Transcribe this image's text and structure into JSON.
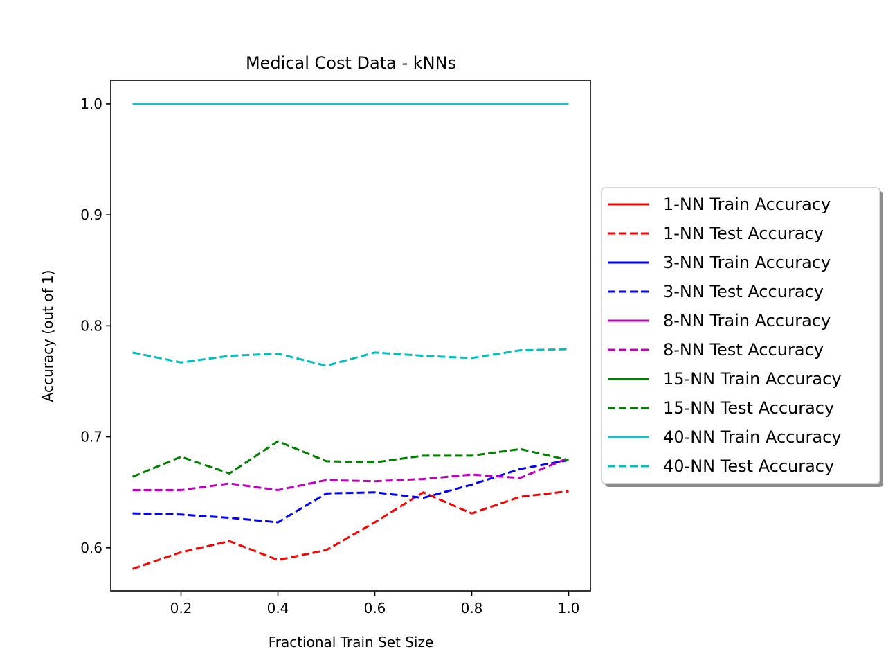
{
  "chart_data": {
    "type": "line",
    "title": "Medical Cost Data - kNNs",
    "xlabel": "Fractional Train Set Size",
    "ylabel": "Accuracy (out of 1)",
    "xlim": [
      0.055,
      1.045
    ],
    "ylim": [
      0.5612,
      1.0212
    ],
    "xticks": [
      0.2,
      0.4,
      0.6,
      0.8,
      1.0
    ],
    "xtick_labels": [
      "0.2",
      "0.4",
      "0.6",
      "0.8",
      "1.0"
    ],
    "yticks": [
      0.6,
      0.7,
      0.8,
      0.9,
      1.0
    ],
    "ytick_labels": [
      "0.6",
      "0.7",
      "0.8",
      "0.9",
      "1.0"
    ],
    "grid": false,
    "legend_position": "outside-right",
    "x": [
      0.1,
      0.2,
      0.3,
      0.4,
      0.5,
      0.6,
      0.7,
      0.8,
      0.9,
      1.0
    ],
    "series": [
      {
        "name": "1-NN Train Accuracy",
        "color": "#ff0000",
        "style": "solid",
        "values": [
          1,
          1,
          1,
          1,
          1,
          1,
          1,
          1,
          1,
          1
        ]
      },
      {
        "name": "1-NN Test Accuracy",
        "color": "#ff0000",
        "style": "dashed",
        "values": [
          0.581,
          0.596,
          0.606,
          0.589,
          0.598,
          0.623,
          0.65,
          0.631,
          0.646,
          0.651
        ]
      },
      {
        "name": "3-NN Train Accuracy",
        "color": "#0000ff",
        "style": "solid",
        "values": [
          1,
          1,
          1,
          1,
          1,
          1,
          1,
          1,
          1,
          1
        ]
      },
      {
        "name": "3-NN Test Accuracy",
        "color": "#0000ff",
        "style": "dashed",
        "values": [
          0.631,
          0.63,
          0.627,
          0.623,
          0.649,
          0.65,
          0.645,
          0.657,
          0.671,
          0.679
        ]
      },
      {
        "name": "8-NN Train Accuracy",
        "color": "#bf00bf",
        "style": "solid",
        "values": [
          1,
          1,
          1,
          1,
          1,
          1,
          1,
          1,
          1,
          1
        ]
      },
      {
        "name": "8-NN Test Accuracy",
        "color": "#bf00bf",
        "style": "dashed",
        "values": [
          0.652,
          0.652,
          0.658,
          0.652,
          0.661,
          0.66,
          0.662,
          0.666,
          0.663,
          0.681
        ]
      },
      {
        "name": "15-NN Train Accuracy",
        "color": "#008000",
        "style": "solid",
        "values": [
          1,
          1,
          1,
          1,
          1,
          1,
          1,
          1,
          1,
          1
        ]
      },
      {
        "name": "15-NN Test Accuracy",
        "color": "#008000",
        "style": "dashed",
        "values": [
          0.664,
          0.682,
          0.667,
          0.696,
          0.678,
          0.677,
          0.683,
          0.683,
          0.689,
          0.679
        ]
      },
      {
        "name": "40-NN Train Accuracy",
        "color": "#17becf",
        "style": "solid",
        "values": [
          1,
          1,
          1,
          1,
          1,
          1,
          1,
          1,
          1,
          1
        ]
      },
      {
        "name": "40-NN Test Accuracy",
        "color": "#00bfbf",
        "style": "dashed",
        "values": [
          0.776,
          0.767,
          0.773,
          0.775,
          0.764,
          0.776,
          0.773,
          0.771,
          0.778,
          0.779
        ]
      }
    ]
  }
}
